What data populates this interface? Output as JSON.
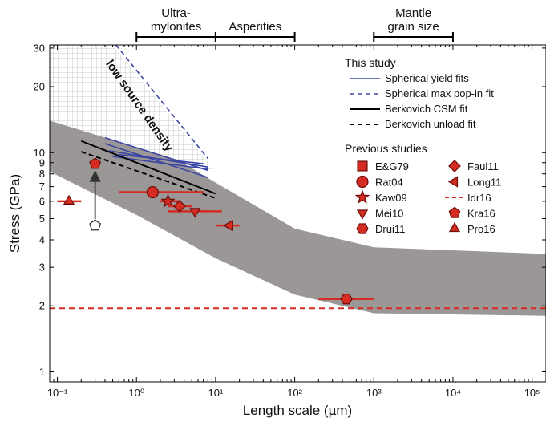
{
  "chart_data": {
    "type": "scatter",
    "xlabel": "Length scale (µm)",
    "ylabel": "Stress (GPa)",
    "x_scale": "log",
    "y_scale": "log",
    "xlim": [
      0.08,
      150000
    ],
    "ylim": [
      0.9,
      31
    ],
    "x_tick_labels": [
      "10⁻¹",
      "10⁰",
      "10¹",
      "10²",
      "10³",
      "10⁴",
      "10⁵"
    ],
    "y_tick_labels": [
      "1",
      "2",
      "3",
      "4",
      "5",
      "6",
      "7",
      "8",
      "9",
      "10",
      "20",
      "30"
    ],
    "shaded_band": {
      "color": "#9a9796",
      "upper": [
        [
          0.08,
          18.5
        ],
        [
          1,
          12
        ],
        [
          10,
          7.3
        ],
        [
          100,
          4.5
        ],
        [
          1000,
          3.7
        ],
        [
          150000,
          3.45
        ]
      ],
      "lower": [
        [
          0.08,
          8.2
        ],
        [
          1,
          5.2
        ],
        [
          10,
          3.3
        ],
        [
          100,
          2.25
        ],
        [
          1000,
          1.85
        ],
        [
          150000,
          1.8
        ]
      ]
    },
    "hatched_region": {
      "label": "low source density",
      "polygon": [
        [
          0.08,
          31
        ],
        [
          0.5,
          31
        ],
        [
          10,
          8.2
        ],
        [
          0.08,
          14
        ]
      ]
    },
    "brackets": [
      {
        "label_lines": [
          "Ultra-",
          "mylonites"
        ],
        "x_range": [
          1,
          10
        ]
      },
      {
        "label_lines": [
          "Asperities"
        ],
        "x_range": [
          10,
          100
        ]
      },
      {
        "label_lines": [
          "Mantle",
          "grain size"
        ],
        "x_range": [
          1000,
          10000
        ]
      }
    ],
    "series": [
      {
        "name": "Spherical yield fits",
        "kind": "lines",
        "color": "#3b45a6",
        "dash": "solid",
        "lines": [
          [
            [
              0.4,
              11.7
            ],
            [
              8,
              8.3
            ]
          ],
          [
            [
              0.4,
              11.0
            ],
            [
              8,
              7.7
            ]
          ],
          [
            [
              0.45,
              10.2
            ],
            [
              8,
              8.6
            ]
          ],
          [
            [
              0.5,
              9.6
            ],
            [
              8,
              8.4
            ]
          ],
          [
            [
              0.6,
              9.8
            ],
            [
              7,
              8.9
            ]
          ]
        ]
      },
      {
        "name": "Spherical max pop-in fit",
        "kind": "lines",
        "color": "#3b45a6",
        "dash": "dashed",
        "lines": [
          [
            [
              0.55,
              31
            ],
            [
              8,
              9.4
            ]
          ]
        ]
      },
      {
        "name": "Berkovich CSM fit",
        "kind": "lines",
        "color": "#000000",
        "dash": "solid",
        "lines": [
          [
            [
              0.2,
              11.3
            ],
            [
              10,
              6.5
            ]
          ]
        ]
      },
      {
        "name": "Berkovich unload fit",
        "kind": "lines",
        "color": "#000000",
        "dash": "dashed",
        "lines": [
          [
            [
              0.2,
              10.1
            ],
            [
              10,
              6.2
            ]
          ]
        ]
      },
      {
        "name": "E&G79",
        "marker": "square",
        "color": "#d42b22",
        "points": []
      },
      {
        "name": "Rat04",
        "marker": "circle",
        "color": "#d42b22",
        "points": [
          {
            "x": 1.6,
            "y": 6.6,
            "xerr": [
              0.6,
              7
            ]
          }
        ]
      },
      {
        "name": "Kaw09",
        "marker": "star",
        "color": "#d42b22",
        "points": [
          {
            "x": 2.5,
            "y": 6.0,
            "xerr": [
              2.0,
              3.5
            ]
          }
        ]
      },
      {
        "name": "Mei10",
        "marker": "triangle-down",
        "color": "#d42b22",
        "points": [
          {
            "x": 5.5,
            "y": 5.4,
            "xerr": [
              2.5,
              12
            ]
          }
        ]
      },
      {
        "name": "Drui11",
        "marker": "hexagon",
        "color": "#d42b22",
        "points": [
          {
            "x": 450,
            "y": 2.15,
            "xerr": [
              200,
              1000
            ]
          }
        ]
      },
      {
        "name": "Faul11",
        "marker": "diamond",
        "color": "#d42b22",
        "points": [
          {
            "x": 3.5,
            "y": 5.7,
            "xerr": [
              2.5,
              5
            ]
          }
        ]
      },
      {
        "name": "Long11",
        "marker": "triangle-left",
        "color": "#d42b22",
        "points": [
          {
            "x": 15,
            "y": 4.65,
            "xerr": [
              10,
              20
            ]
          }
        ]
      },
      {
        "name": "Idr16",
        "kind": "hline",
        "color": "#d42b22",
        "dash": "dashed",
        "y": 1.95
      },
      {
        "name": "Kra16",
        "marker": "pentagon",
        "color": "#d42b22",
        "points": [
          {
            "x": 0.3,
            "y": 8.9
          }
        ]
      },
      {
        "name": "Pro16",
        "marker": "triangle-up",
        "color": "#d42b22",
        "points": [
          {
            "x": 0.14,
            "y": 6.0,
            "xerr": [
              0.1,
              0.2
            ]
          }
        ]
      }
    ],
    "annotations": [
      {
        "type": "arrow",
        "from": [
          0.3,
          4.65
        ],
        "to": [
          0.3,
          8.2
        ],
        "note": "open pentagon to filled pentagon"
      }
    ],
    "legend": {
      "placement": "top-right",
      "this_study_title": "This study",
      "previous_title": "Previous studies"
    }
  }
}
